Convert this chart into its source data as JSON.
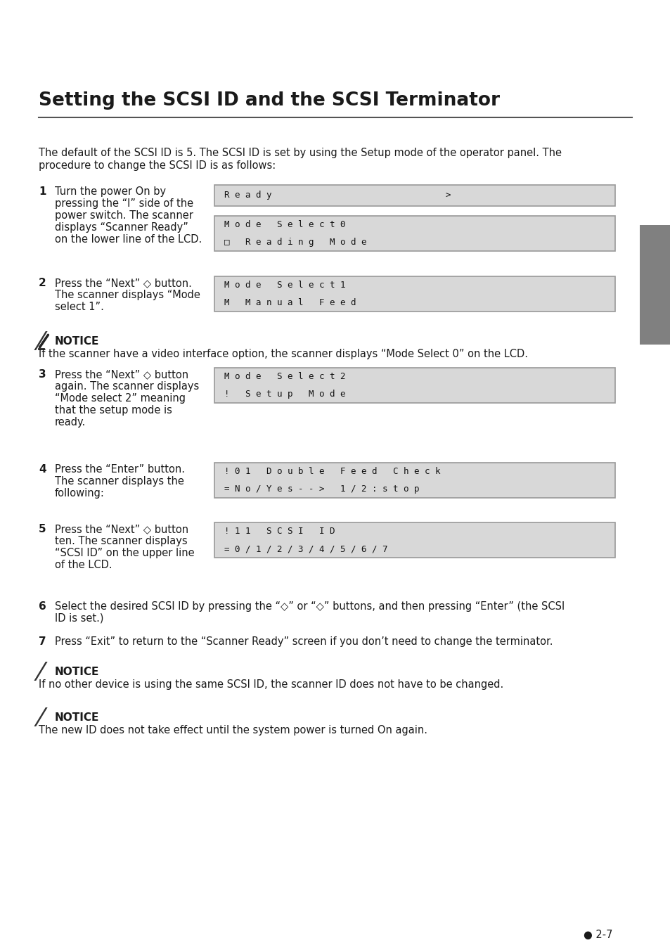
{
  "title": "Setting the SCSI ID and the SCSI Terminator",
  "bg_color": "#ffffff",
  "title_color": "#1a1a1a",
  "text_color": "#1a1a1a",
  "lcd_bg": "#d8d8d8",
  "lcd_border": "#999999",
  "sidebar_color": "#808080",
  "page_num": "2-7",
  "intro_line1": "The default of the SCSI ID is 5. The SCSI ID is set by using the Setup mode of the operator panel. The",
  "intro_line2": "procedure to change the SCSI ID is as follows:",
  "notice1_text": "If the scanner have a video interface option, the scanner displays “Mode Select 0” on the LCD.",
  "notice2_text": "If no other device is using the same SCSI ID, the scanner ID does not have to be changed.",
  "notice3_text": "The new ID does not take effect until the system power is turned On again.",
  "step1_text": [
    "Turn the power On by",
    "pressing the “I” side of the",
    "power switch. The scanner",
    "displays “Scanner Ready”",
    "on the lower line of the LCD."
  ],
  "step1_lcd1": [
    "R e a d y                                 >"
  ],
  "step1_lcd2": [
    "M o d e   S e l e c t 0",
    "□   R e a d i n g   M o d e"
  ],
  "step2_text": [
    "Press the “Next” ◇ button.",
    "The scanner displays “Mode",
    "select 1”."
  ],
  "step2_lcd": [
    "M o d e   S e l e c t 1",
    "M   M a n u a l   F e e d"
  ],
  "step3_text": [
    "Press the “Next” ◇ button",
    "again. The scanner displays",
    "“Mode select 2” meaning",
    "that the setup mode is",
    "ready."
  ],
  "step3_lcd": [
    "M o d e   S e l e c t 2",
    "!   S e t u p   M o d e"
  ],
  "step4_text": [
    "Press the “Enter” button.",
    "The scanner displays the",
    "following:"
  ],
  "step4_lcd": [
    "! 0 1   D o u b l e   F e e d   C h e c k",
    "= N o / Y e s - - >   1 / 2 : s t o p"
  ],
  "step5_text": [
    "Press the “Next” ◇ button",
    "ten. The scanner displays",
    "“SCSI ID” on the upper line",
    "of the LCD."
  ],
  "step5_lcd": [
    "! 1 1   S C S I   I D",
    "= 0 / 1 / 2 / 3 / 4 / 5 / 6 / 7"
  ],
  "step6_text": [
    "Select the desired SCSI ID by pressing the “◇” or “◇” buttons, and then pressing “Enter” (the SCSI",
    "ID is set.)"
  ],
  "step7_text": [
    "Press “Exit” to return to the “Scanner Ready” screen if you don’t need to change the terminator."
  ]
}
